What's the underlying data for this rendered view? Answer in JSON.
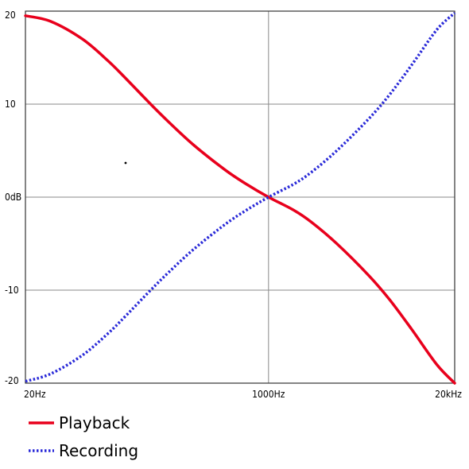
{
  "chart_data": {
    "type": "line",
    "title": "",
    "xlabel": "",
    "ylabel": "",
    "x_scale": "log",
    "xlim": [
      20,
      20000
    ],
    "ylim": [
      -20,
      20
    ],
    "x_ticks": [
      {
        "value": 20,
        "label": "20Hz"
      },
      {
        "value": 1000,
        "label": "1000Hz"
      },
      {
        "value": 20000,
        "label": "20kHz"
      }
    ],
    "y_ticks": [
      {
        "value": 20,
        "label": "20"
      },
      {
        "value": 10,
        "label": "10"
      },
      {
        "value": 0,
        "label": "0dB"
      },
      {
        "value": -10,
        "label": "-10"
      },
      {
        "value": -20,
        "label": "-20"
      }
    ],
    "grid": true,
    "legend_position": "bottom-left",
    "x": [
      20,
      30,
      50,
      75,
      100,
      150,
      200,
      300,
      500,
      700,
      1000,
      1500,
      2000,
      3000,
      5000,
      7000,
      10000,
      15000,
      20000
    ],
    "series": [
      {
        "name": "Playback",
        "style": "solid",
        "color": "#e8001c",
        "values": [
          19.5,
          18.9,
          17.0,
          14.7,
          12.8,
          10.0,
          8.1,
          5.6,
          2.9,
          1.4,
          0.0,
          -1.4,
          -2.7,
          -5.0,
          -8.4,
          -11.0,
          -14.2,
          -18.0,
          -20.0
        ]
      },
      {
        "name": "Recording",
        "style": "dotted",
        "color": "#2a2ad8",
        "values": [
          -19.8,
          -19.0,
          -17.0,
          -14.7,
          -12.8,
          -10.0,
          -8.1,
          -5.6,
          -2.9,
          -1.4,
          0.0,
          1.4,
          2.7,
          5.0,
          8.4,
          11.0,
          14.2,
          18.0,
          19.8
        ]
      }
    ]
  }
}
